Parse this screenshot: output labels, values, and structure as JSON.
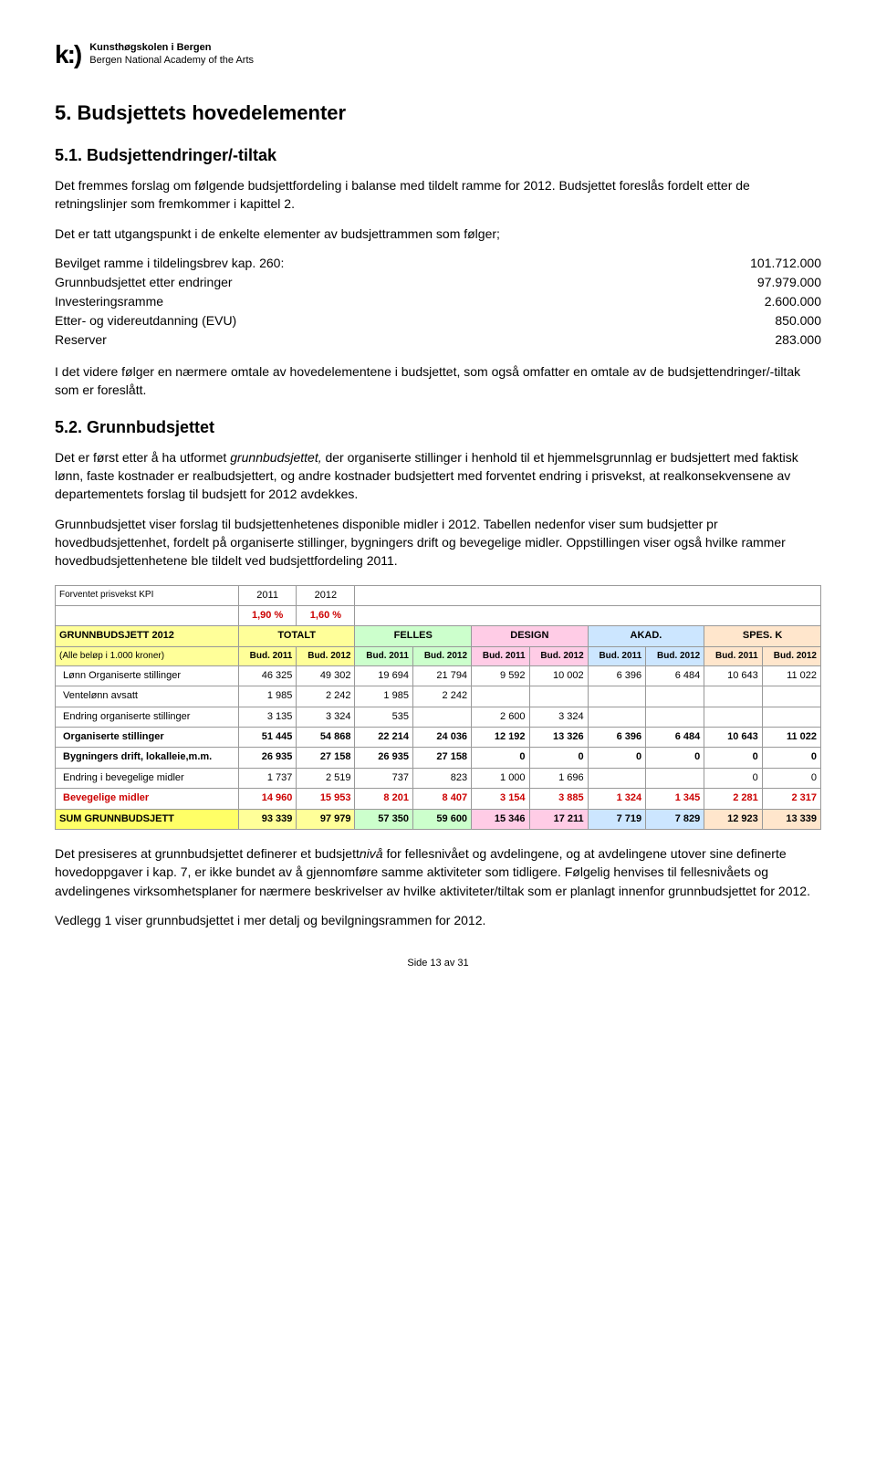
{
  "logo": {
    "mark": "k:)",
    "line1": "Kunsthøgskolen i Bergen",
    "line2": "Bergen National Academy of the Arts"
  },
  "h5": "5.   Budsjettets hovedelementer",
  "h51": "5.1.   Budsjettendringer/-tiltak",
  "p1": "Det fremmes forslag om følgende budsjettfordeling i balanse med tildelt ramme for 2012. Budsjettet foreslås fordelt etter de retningslinjer som fremkommer i kapittel 2.",
  "p2": "Det er tatt utgangspunkt i de enkelte elementer av budsjettrammen som følger;",
  "fig": [
    {
      "label": "Bevilget ramme i tildelingsbrev kap. 260:",
      "val": "101.712.000"
    },
    {
      "label": "Grunnbudsjettet etter endringer",
      "val": "97.979.000"
    },
    {
      "label": "Investeringsramme",
      "val": "2.600.000"
    },
    {
      "label": "Etter- og videreutdanning (EVU)",
      "val": "850.000"
    },
    {
      "label": "Reserver",
      "val": "283.000"
    }
  ],
  "p3": "I det videre følger en nærmere omtale av hovedelementene i budsjettet, som også omfatter en omtale av de budsjettendringer/-tiltak som er foreslått.",
  "h52": "5.2.   Grunnbudsjettet",
  "p4a": "Det er først etter å ha utformet ",
  "p4i": "grunnbudsjettet,",
  "p4b": " der organiserte stillinger i henhold til et hjemmelsgrunnlag er budsjettert med faktisk lønn, faste kostnader er realbudsjettert, og andre kostnader budsjettert med forventet endring i prisvekst, at realkonsekvensene av departementets forslag til budsjett for 2012 avdekkes.",
  "p5": "Grunnbudsjettet viser forslag til budsjettenhetenes disponible midler i 2012. Tabellen nedenfor viser sum budsjetter pr hovedbudsjettenhet, fordelt på organiserte stillinger, bygningers drift og bevegelige midler. Oppstillingen viser også hvilke rammer hovedbudsjettenhetene ble tildelt ved budsjettfordeling 2011.",
  "table": {
    "kpi_label": "Forventet prisvekst KPI",
    "kpi_2011": "1,90 %",
    "kpi_2012": "1,60 %",
    "year_2011": "2011",
    "year_2012": "2012",
    "title": "GRUNNBUDSJETT 2012",
    "groups": [
      "TOTALT",
      "FELLES",
      "DESIGN",
      "AKAD.",
      "SPES. K"
    ],
    "group_colors": [
      "#ffff99",
      "#ccffcc",
      "#ffcce6",
      "#cce6ff",
      "#ffe6cc"
    ],
    "sub_label": "(Alle beløp i 1.000 kroner)",
    "col_labels": [
      "Bud. 2011",
      "Bud. 2012",
      "Bud. 2011",
      "Bud. 2012",
      "Bud. 2011",
      "Bud. 2012",
      "Bud. 2011",
      "Bud. 2012",
      "Bud. 2011",
      "Bud. 2012"
    ],
    "rows": [
      {
        "label": "Lønn Organiserte stillinger",
        "vals": [
          "46 325",
          "49 302",
          "19 694",
          "21 794",
          "9 592",
          "10 002",
          "6 396",
          "6 484",
          "10 643",
          "11 022"
        ]
      },
      {
        "label": "Ventelønn avsatt",
        "vals": [
          "1 985",
          "2 242",
          "1 985",
          "2 242",
          "",
          "",
          "",
          "",
          "",
          ""
        ]
      },
      {
        "label": "Endring organiserte stillinger",
        "vals": [
          "3 135",
          "3 324",
          "535",
          "",
          "2 600",
          "3 324",
          "",
          "",
          "",
          ""
        ]
      },
      {
        "label": "Organiserte stillinger",
        "bold": true,
        "vals": [
          "51 445",
          "54 868",
          "22 214",
          "24 036",
          "12 192",
          "13 326",
          "6 396",
          "6 484",
          "10 643",
          "11 022"
        ]
      },
      {
        "label": "Bygningers drift, lokalleie,m.m.",
        "bold": true,
        "vals": [
          "26 935",
          "27 158",
          "26 935",
          "27 158",
          "0",
          "0",
          "0",
          "0",
          "0",
          "0"
        ]
      },
      {
        "label": "Endring i bevegelige midler",
        "vals": [
          "1 737",
          "2 519",
          "737",
          "823",
          "1 000",
          "1 696",
          "",
          "",
          "0",
          "0"
        ]
      },
      {
        "label": "Bevegelige midler",
        "bold": true,
        "red": true,
        "vals": [
          "14 960",
          "15 953",
          "8 201",
          "8 407",
          "3 154",
          "3 885",
          "1 324",
          "1 345",
          "2 281",
          "2 317"
        ]
      },
      {
        "label": "SUM GRUNNBUDSJETT",
        "sum": true,
        "vals": [
          "93 339",
          "97 979",
          "57 350",
          "59 600",
          "15 346",
          "17 211",
          "7 719",
          "7 829",
          "12 923",
          "13 339"
        ]
      }
    ]
  },
  "p6a": "Det presiseres at grunnbudsjettet definerer et budsjett",
  "p6i": "nivå",
  "p6b": " for fellesnivået og avdelingene, og at avdelingene utover sine definerte hovedoppgaver i kap. 7, er ikke bundet av å gjennomføre samme aktiviteter som tidligere. Følgelig henvises til fellesnivåets og avdelingenes virksomhetsplaner for nærmere beskrivelser av hvilke aktiviteter/tiltak som er planlagt innenfor grunnbudsjettet for 2012.",
  "p7": "Vedlegg 1 viser grunnbudsjettet i mer detalj og bevilgningsrammen for 2012.",
  "footer": "Side 13 av 31"
}
